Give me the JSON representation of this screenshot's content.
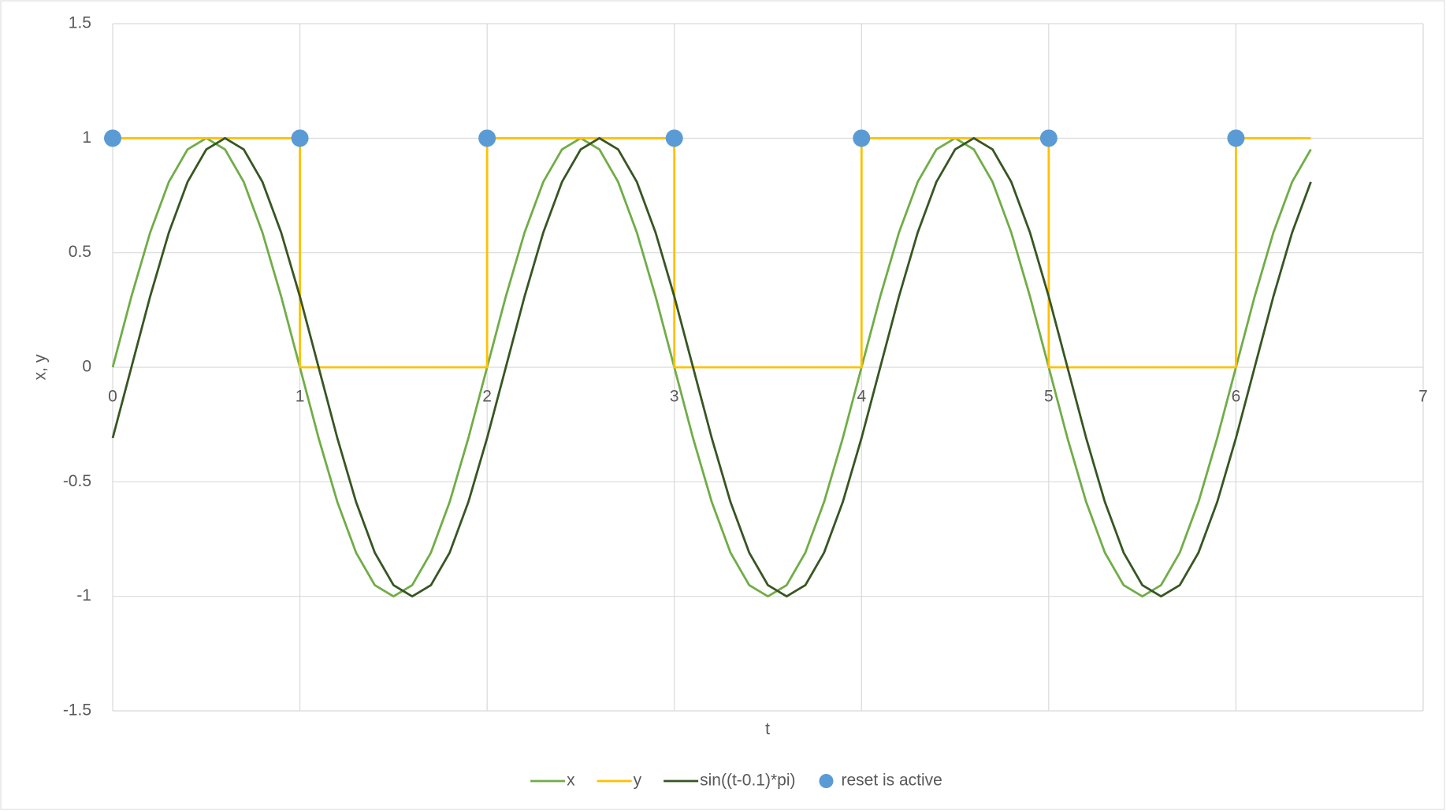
{
  "chart_data": {
    "type": "line",
    "xlabel": "t",
    "ylabel": "x, y",
    "xlim": [
      0,
      7
    ],
    "xticks": [
      0,
      1,
      2,
      3,
      4,
      5,
      6,
      7
    ],
    "ylim": [
      -1.5,
      1.5
    ],
    "yticks": [
      -1.5,
      -1,
      -0.5,
      0,
      0.5,
      1,
      1.5
    ],
    "grid": true,
    "legend": "bottom",
    "x": [
      0,
      0.1,
      0.2,
      0.3,
      0.4,
      0.5,
      0.6,
      0.7,
      0.8,
      0.9,
      1,
      1.1,
      1.2,
      1.3,
      1.4,
      1.5,
      1.6,
      1.7,
      1.8,
      1.9,
      2,
      2.1,
      2.2,
      2.3,
      2.4,
      2.5,
      2.6,
      2.7,
      2.8,
      2.9,
      3,
      3.1,
      3.2,
      3.3,
      3.4,
      3.5,
      3.6,
      3.7,
      3.8,
      3.9,
      4,
      4.1,
      4.2,
      4.3,
      4.4,
      4.5,
      4.6,
      4.7,
      4.8,
      4.9,
      5,
      5.1,
      5.2,
      5.3,
      5.4,
      5.5,
      5.6,
      5.7,
      5.8,
      5.9,
      6,
      6.1,
      6.2,
      6.3,
      6.4
    ],
    "series": [
      {
        "name": "x",
        "color": "#70ad47",
        "type": "line",
        "values": [
          0,
          0.309,
          0.588,
          0.809,
          0.951,
          1,
          0.951,
          0.809,
          0.588,
          0.309,
          0,
          -0.309,
          -0.588,
          -0.809,
          -0.951,
          -1,
          -0.951,
          -0.809,
          -0.588,
          -0.309,
          0,
          0.309,
          0.588,
          0.809,
          0.951,
          1,
          0.951,
          0.809,
          0.588,
          0.309,
          0,
          -0.309,
          -0.588,
          -0.809,
          -0.951,
          -1,
          -0.951,
          -0.809,
          -0.588,
          -0.309,
          0,
          0.309,
          0.588,
          0.809,
          0.951,
          1,
          0.951,
          0.809,
          0.588,
          0.309,
          0,
          -0.309,
          -0.588,
          -0.809,
          -0.951,
          -1,
          -0.951,
          -0.809,
          -0.588,
          -0.309,
          0,
          0.309,
          0.588,
          0.809,
          0.951
        ]
      },
      {
        "name": "y",
        "color": "#ffc000",
        "type": "line",
        "x": [
          0,
          1,
          1,
          2,
          2,
          3,
          3,
          4,
          4,
          5,
          5,
          6,
          6,
          6.4
        ],
        "values": [
          1,
          1,
          0,
          0,
          1,
          1,
          0,
          0,
          1,
          1,
          0,
          0,
          1,
          1
        ]
      },
      {
        "name": "sin((t-0.1)*pi)",
        "color": "#375623",
        "type": "line",
        "values": [
          -0.309,
          0,
          0.309,
          0.588,
          0.809,
          0.951,
          1,
          0.951,
          0.809,
          0.588,
          0.309,
          0,
          -0.309,
          -0.588,
          -0.809,
          -0.951,
          -1,
          -0.951,
          -0.809,
          -0.588,
          -0.309,
          0,
          0.309,
          0.588,
          0.809,
          0.951,
          1,
          0.951,
          0.809,
          0.588,
          0.309,
          0,
          -0.309,
          -0.588,
          -0.809,
          -0.951,
          -1,
          -0.951,
          -0.809,
          -0.588,
          -0.309,
          0,
          0.309,
          0.588,
          0.809,
          0.951,
          1,
          0.951,
          0.809,
          0.588,
          0.309,
          0,
          -0.309,
          -0.588,
          -0.809,
          -0.951,
          -1,
          -0.951,
          -0.809,
          -0.588,
          -0.309,
          0,
          0.309,
          0.588,
          0.809
        ]
      },
      {
        "name": "reset is active",
        "color": "#5b9bd5",
        "type": "scatter",
        "x": [
          0,
          1,
          2,
          3,
          4,
          5,
          6
        ],
        "values": [
          1,
          1,
          1,
          1,
          1,
          1,
          1
        ]
      }
    ]
  }
}
